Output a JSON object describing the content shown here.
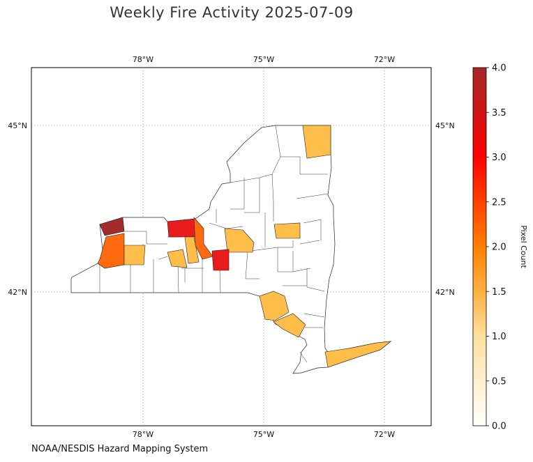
{
  "title": "Weekly Fire Activity 2025-07-09",
  "credit": "NOAA/NESDIS Hazard Mapping System",
  "map": {
    "lon_ticks": [
      "78°W",
      "75°W",
      "72°W"
    ],
    "lat_ticks": [
      "45°N",
      "42°N"
    ],
    "gridlines": true
  },
  "colorbar": {
    "label": "Pixel Count",
    "ticks": [
      "0.0",
      "0.5",
      "1.0",
      "1.5",
      "2.0",
      "2.5",
      "3.0",
      "3.5",
      "4.0"
    ],
    "range": [
      0,
      4
    ],
    "colors": [
      "#fff7e0",
      "#ffe2a0",
      "#ffc04a",
      "#ffa000",
      "#ff6a00",
      "#ff2a00",
      "#e80000",
      "#c01818",
      "#a52a2a"
    ]
  },
  "chart_data": {
    "type": "heatmap",
    "title": "Weekly Fire Activity 2025-07-09",
    "region": "New York State counties",
    "value_label": "Pixel Count",
    "vmin": 0,
    "vmax": 4,
    "cells": [
      {
        "value": 1,
        "color": "#ffbd4a"
      },
      {
        "value": 4,
        "color": "#a52a2a"
      },
      {
        "value": 2,
        "color": "#ff6a10"
      },
      {
        "value": 1,
        "color": "#ffbd4a"
      },
      {
        "value": 3,
        "color": "#e81c1c"
      },
      {
        "value": 1,
        "color": "#ffbd4a"
      },
      {
        "value": 1,
        "color": "#ffbd4a"
      },
      {
        "value": 2,
        "color": "#ff6a10"
      },
      {
        "value": 1,
        "color": "#ffbd4a"
      },
      {
        "value": 3,
        "color": "#e81c1c"
      },
      {
        "value": 1,
        "color": "#ffbd4a"
      },
      {
        "value": 1,
        "color": "#ffbd4a"
      },
      {
        "value": 1,
        "color": "#ffbd4a"
      },
      {
        "value": 1,
        "color": "#ffbd4a"
      }
    ]
  }
}
